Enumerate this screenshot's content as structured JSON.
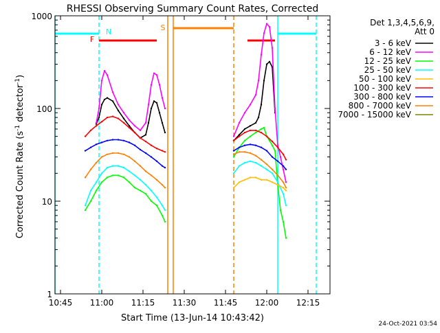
{
  "chart_data": {
    "type": "line",
    "title": "RHESSI Observing Summary Count Rates, Corrected",
    "xlabel": "Start Time (13-Jun-14 10:43:42)",
    "ylabel_main": "Corrected Count Rate (s",
    "ylabel_sup1": "-1",
    "ylabel_mid": " detector",
    "ylabel_sup2": "-1",
    "ylabel_end": ")",
    "y_scale": "log",
    "ylim": [
      1,
      1000
    ],
    "xlim": [
      "10:43",
      "12:23"
    ],
    "x_ticks": [
      "10:45",
      "11:00",
      "11:15",
      "11:30",
      "11:45",
      "12:00",
      "12:15"
    ],
    "y_ticks": [
      "1",
      "10",
      "100",
      "1000"
    ],
    "legend_header": [
      "Det 1,3,4,5,6,9,",
      "Att 0"
    ],
    "legend_placement": "right",
    "timestamp": "24-Oct-2021 03:54",
    "annotations": [
      {
        "label": "N",
        "color": "#00ffff",
        "time": "11:00"
      },
      {
        "label": "F",
        "color": "#ff0000",
        "time": "10:59"
      },
      {
        "label": "S",
        "color": "#ff8000",
        "time": "11:24"
      }
    ],
    "night_bars": [
      {
        "start": "10:43",
        "end": "10:59"
      },
      {
        "start": "12:04",
        "end": "12:18"
      }
    ],
    "flare_bars": [
      {
        "start": "10:59",
        "end": "11:20"
      },
      {
        "start": "11:53",
        "end": "12:03"
      }
    ],
    "saa_bars": [
      {
        "start": "11:26",
        "end": "11:48"
      }
    ],
    "vlines": [
      {
        "time": "10:43",
        "color": "#00ffff",
        "style": "solid"
      },
      {
        "time": "10:59",
        "color": "#00ffff",
        "style": "dashed"
      },
      {
        "time": "11:24",
        "color": "#ff8000",
        "style": "solid"
      },
      {
        "time": "11:26",
        "color": "#ff8000",
        "style": "solid"
      },
      {
        "time": "11:48",
        "color": "#ff8000",
        "style": "dashed"
      },
      {
        "time": "12:04",
        "color": "#00ffff",
        "style": "solid"
      },
      {
        "time": "12:18",
        "color": "#00ffff",
        "style": "dashed"
      }
    ],
    "series": [
      {
        "name": "3 - 6 keV",
        "color": "#000000",
        "segments": [
          {
            "x": [
              "10:58",
              "10:59",
              "11:00",
              "11:01",
              "11:02",
              "11:04",
              "11:06",
              "11:08",
              "11:10",
              "11:12",
              "11:14",
              "11:16",
              "11:17",
              "11:18",
              "11:19",
              "11:20",
              "11:21",
              "11:22",
              "11:23"
            ],
            "y": [
              68,
              80,
              110,
              125,
              130,
              120,
              95,
              78,
              65,
              55,
              48,
              52,
              70,
              100,
              120,
              115,
              90,
              70,
              55
            ]
          },
          {
            "x": [
              "11:48",
              "11:50",
              "11:52",
              "11:54",
              "11:56",
              "11:57",
              "11:58",
              "11:59",
              "12:00",
              "12:01",
              "12:02",
              "12:03"
            ],
            "y": [
              45,
              52,
              60,
              65,
              70,
              80,
              110,
              200,
              300,
              320,
              280,
              90
            ]
          }
        ]
      },
      {
        "name": "6 - 12 keV",
        "color": "#ff00ff",
        "segments": [
          {
            "x": [
              "10:58",
              "10:59",
              "11:00",
              "11:01",
              "11:02",
              "11:04",
              "11:06",
              "11:08",
              "11:10",
              "11:12",
              "11:14",
              "11:16",
              "11:17",
              "11:18",
              "11:19",
              "11:20",
              "11:21",
              "11:22",
              "11:23"
            ],
            "y": [
              70,
              100,
              200,
              255,
              230,
              150,
              110,
              90,
              75,
              65,
              58,
              70,
              110,
              180,
              240,
              230,
              180,
              130,
              100
            ]
          },
          {
            "x": [
              "11:48",
              "11:50",
              "11:52",
              "11:54",
              "11:56",
              "11:57",
              "11:58",
              "11:59",
              "12:00",
              "12:01",
              "12:02",
              "12:03",
              "12:04",
              "12:05",
              "12:06",
              "12:07"
            ],
            "y": [
              50,
              70,
              90,
              110,
              140,
              200,
              380,
              650,
              820,
              760,
              450,
              100,
              40,
              30,
              22,
              16
            ]
          }
        ]
      },
      {
        "name": "12 - 25 keV",
        "color": "#00ff00",
        "segments": [
          {
            "x": [
              "10:54",
              "10:56",
              "10:58",
              "11:00",
              "11:02",
              "11:04",
              "11:06",
              "11:08",
              "11:10",
              "11:12",
              "11:14",
              "11:16",
              "11:18",
              "11:20",
              "11:22",
              "11:23"
            ],
            "y": [
              8,
              10,
              13,
              16,
              18,
              19,
              19,
              18,
              16,
              14,
              13,
              12,
              10,
              9,
              7,
              6
            ]
          },
          {
            "x": [
              "11:48",
              "11:50",
              "11:52",
              "11:54",
              "11:56",
              "11:58",
              "11:59",
              "12:00",
              "12:01",
              "12:02",
              "12:03",
              "12:04",
              "12:05",
              "12:06",
              "12:07"
            ],
            "y": [
              30,
              38,
              45,
              50,
              55,
              60,
              62,
              50,
              45,
              40,
              35,
              15,
              8,
              6,
              4
            ]
          }
        ]
      },
      {
        "name": "25 - 50 keV",
        "color": "#00ffff",
        "segments": [
          {
            "x": [
              "10:54",
              "10:56",
              "10:58",
              "11:00",
              "11:02",
              "11:04",
              "11:06",
              "11:08",
              "11:10",
              "11:12",
              "11:14",
              "11:16",
              "11:18",
              "11:20",
              "11:22",
              "11:23"
            ],
            "y": [
              9,
              13,
              16,
              20,
              23,
              24,
              24,
              23,
              21,
              19,
              17,
              15,
              13,
              11,
              9,
              8
            ]
          },
          {
            "x": [
              "11:48",
              "11:50",
              "11:52",
              "11:54",
              "11:56",
              "11:58",
              "12:00",
              "12:02",
              "12:04",
              "12:06",
              "12:07"
            ],
            "y": [
              20,
              24,
              26,
              27,
              26,
              24,
              22,
              20,
              16,
              12,
              9
            ]
          }
        ]
      },
      {
        "name": "50 - 100 keV",
        "color": "#ffbf00",
        "segments": [
          {
            "x": [
              "11:48",
              "11:50",
              "11:52",
              "11:54",
              "11:56",
              "11:58",
              "12:00",
              "12:02",
              "12:04",
              "12:06",
              "12:07"
            ],
            "y": [
              14,
              16,
              17,
              18,
              18,
              17,
              17,
              16,
              15,
              14,
              13
            ]
          }
        ]
      },
      {
        "name": "100 - 300 keV",
        "color": "#ff0000",
        "segments": [
          {
            "x": [
              "10:54",
              "10:56",
              "10:58",
              "11:00",
              "11:02",
              "11:04",
              "11:06",
              "11:08",
              "11:10",
              "11:12",
              "11:14",
              "11:16",
              "11:18",
              "11:20",
              "11:22",
              "11:23"
            ],
            "y": [
              50,
              58,
              65,
              72,
              80,
              82,
              78,
              70,
              62,
              55,
              48,
              44,
              40,
              37,
              35,
              34
            ]
          },
          {
            "x": [
              "11:48",
              "11:50",
              "11:52",
              "11:54",
              "11:56",
              "11:58",
              "12:00",
              "12:02",
              "12:04",
              "12:06",
              "12:07"
            ],
            "y": [
              45,
              50,
              55,
              58,
              58,
              55,
              50,
              44,
              38,
              32,
              28
            ]
          }
        ]
      },
      {
        "name": "300 - 800 keV",
        "color": "#0000ff",
        "segments": [
          {
            "x": [
              "10:54",
              "10:56",
              "10:58",
              "11:00",
              "11:02",
              "11:04",
              "11:06",
              "11:08",
              "11:10",
              "11:12",
              "11:14",
              "11:16",
              "11:18",
              "11:20",
              "11:22",
              "11:23"
            ],
            "y": [
              35,
              38,
              41,
              43,
              45,
              46,
              46,
              45,
              43,
              40,
              36,
              33,
              30,
              27,
              24,
              23
            ]
          },
          {
            "x": [
              "11:48",
              "11:50",
              "11:52",
              "11:54",
              "11:56",
              "11:58",
              "12:00",
              "12:02",
              "12:04",
              "12:06",
              "12:07"
            ],
            "y": [
              35,
              38,
              40,
              41,
              40,
              38,
              35,
              30,
              27,
              24,
              22
            ]
          }
        ]
      },
      {
        "name": "800 - 7000 keV",
        "color": "#ff8000",
        "segments": [
          {
            "x": [
              "10:54",
              "10:56",
              "10:58",
              "11:00",
              "11:02",
              "11:04",
              "11:06",
              "11:08",
              "11:10",
              "11:12",
              "11:14",
              "11:16",
              "11:18",
              "11:20",
              "11:22",
              "11:23"
            ],
            "y": [
              18,
              22,
              26,
              30,
              32,
              33,
              33,
              32,
              30,
              27,
              24,
              21,
              19,
              17,
              15,
              14
            ]
          },
          {
            "x": [
              "11:48",
              "11:50",
              "11:52",
              "11:54",
              "11:56",
              "11:58",
              "12:00",
              "12:02",
              "12:04",
              "12:06",
              "12:07"
            ],
            "y": [
              32,
              34,
              34,
              33,
              31,
              28,
              25,
              22,
              19,
              16,
              14
            ]
          }
        ]
      },
      {
        "name": "7000 - 15000 keV",
        "color": "#808000",
        "segments": []
      }
    ]
  }
}
